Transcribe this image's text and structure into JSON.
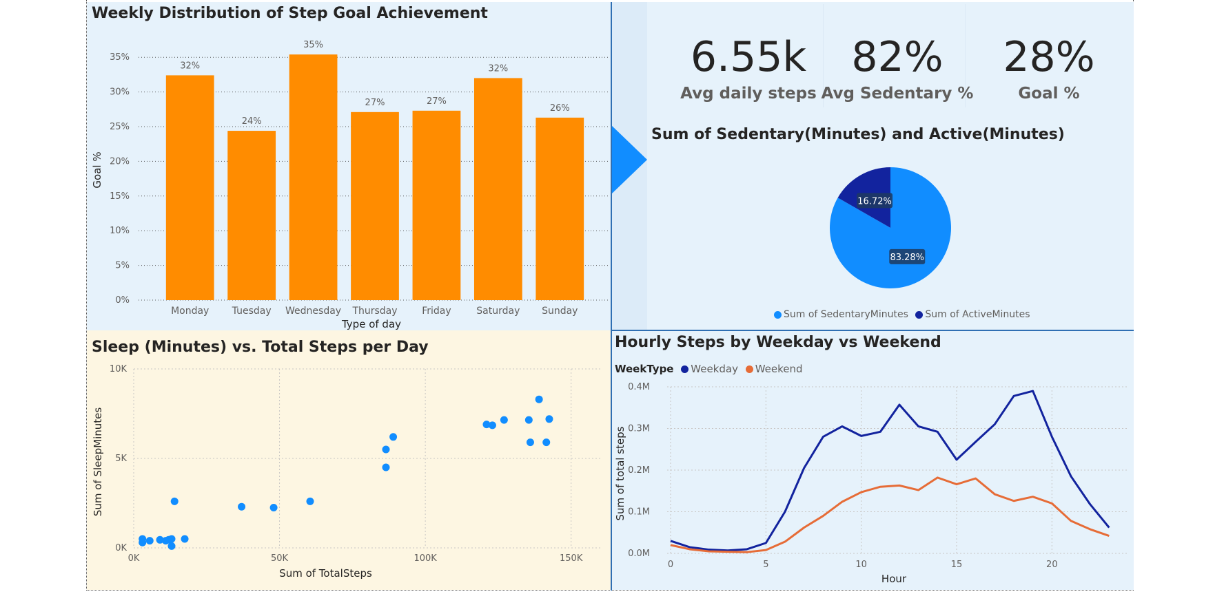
{
  "bar_chart": {
    "title": "Weekly Distribution of Step Goal Achievement",
    "bar_color": "#ff8c00"
  },
  "kpis": [
    {
      "value": "6.55k",
      "label": "Avg daily steps"
    },
    {
      "value": "82%",
      "label": "Avg Sedentary %"
    },
    {
      "value": "28%",
      "label": "Goal %"
    }
  ],
  "pie_chart": {
    "title": "Sum of Sedentary(Minutes) and Active(Minutes)",
    "legend": [
      {
        "label": "Sum of SedentaryMinutes",
        "color": "#118dff"
      },
      {
        "label": "Sum of ActiveMinutes",
        "color": "#12239e"
      }
    ]
  },
  "scatter_chart": {
    "title": "Sleep (Minutes) vs. Total Steps per Day",
    "point_color": "#118dff"
  },
  "line_chart": {
    "title": "Hourly Steps by Weekday vs Weekend",
    "legend_title": "WeekType",
    "legend": [
      {
        "label": "Weekday",
        "color": "#12239e"
      },
      {
        "label": "Weekend",
        "color": "#e66c37"
      }
    ]
  },
  "chart_data": [
    {
      "type": "bar",
      "title": "Weekly Distribution of Step Goal Achievement",
      "xlabel": "Type of day",
      "ylabel": "Goal %",
      "categories": [
        "Monday",
        "Tuesday",
        "Wednesday",
        "Thursday",
        "Friday",
        "Saturday",
        "Sunday"
      ],
      "values": [
        32.4,
        24.4,
        35.4,
        27.1,
        27.3,
        32.0,
        26.3
      ],
      "data_labels": [
        "32%",
        "24%",
        "35%",
        "27%",
        "27%",
        "32%",
        "26%"
      ],
      "ylim": [
        0,
        37.5
      ],
      "yticks": [
        0,
        5,
        10,
        15,
        20,
        25,
        30,
        35
      ],
      "ytick_labels": [
        "0%",
        "5%",
        "10%",
        "15%",
        "20%",
        "25%",
        "30%",
        "35%"
      ],
      "grid": true
    },
    {
      "type": "pie",
      "title": "Sum of Sedentary(Minutes) and Active(Minutes)",
      "categories": [
        "Sum of SedentaryMinutes",
        "Sum of ActiveMinutes"
      ],
      "values": [
        83.28,
        16.72
      ],
      "data_labels": [
        "83.28%",
        "16.72%"
      ],
      "colors": [
        "#118dff",
        "#12239e"
      ],
      "legend": "bottom"
    },
    {
      "type": "scatter",
      "title": "Sleep (Minutes) vs. Total Steps per Day",
      "xlabel": "Sum of TotalSteps",
      "ylabel": "Sum of SleepMinutes",
      "xlim": [
        0,
        160000
      ],
      "ylim": [
        0,
        10000
      ],
      "xticks": [
        0,
        50000,
        100000,
        150000
      ],
      "xtick_labels": [
        "0K",
        "50K",
        "100K",
        "150K"
      ],
      "yticks": [
        0,
        5000,
        10000
      ],
      "ytick_labels": [
        "0K",
        "5K",
        "10K"
      ],
      "points": [
        {
          "x": 3000,
          "y": 500
        },
        {
          "x": 3000,
          "y": 300
        },
        {
          "x": 5500,
          "y": 400
        },
        {
          "x": 9000,
          "y": 450
        },
        {
          "x": 11000,
          "y": 400
        },
        {
          "x": 12000,
          "y": 450
        },
        {
          "x": 13000,
          "y": 500
        },
        {
          "x": 13000,
          "y": 100
        },
        {
          "x": 14000,
          "y": 2600
        },
        {
          "x": 17500,
          "y": 500
        },
        {
          "x": 37000,
          "y": 2300
        },
        {
          "x": 48000,
          "y": 2250
        },
        {
          "x": 60500,
          "y": 2600
        },
        {
          "x": 86500,
          "y": 4500
        },
        {
          "x": 86500,
          "y": 5500
        },
        {
          "x": 89000,
          "y": 6200
        },
        {
          "x": 121000,
          "y": 6900
        },
        {
          "x": 123000,
          "y": 6850
        },
        {
          "x": 127000,
          "y": 7150
        },
        {
          "x": 135500,
          "y": 7150
        },
        {
          "x": 136000,
          "y": 5900
        },
        {
          "x": 139000,
          "y": 8300
        },
        {
          "x": 141500,
          "y": 5900
        },
        {
          "x": 142500,
          "y": 7200
        }
      ],
      "grid": true
    },
    {
      "type": "line",
      "title": "Hourly Steps by Weekday vs Weekend",
      "xlabel": "Hour",
      "ylabel": "Sum of total steps",
      "x": [
        0,
        1,
        2,
        3,
        4,
        5,
        6,
        7,
        8,
        9,
        10,
        11,
        12,
        13,
        14,
        15,
        16,
        17,
        18,
        19,
        20,
        21,
        22,
        23
      ],
      "xlim": [
        0,
        24
      ],
      "xticks": [
        0,
        5,
        10,
        15,
        20
      ],
      "ylim": [
        0,
        400000
      ],
      "yticks": [
        0,
        100000,
        200000,
        300000,
        400000
      ],
      "ytick_labels": [
        "0.0M",
        "0.1M",
        "0.2M",
        "0.3M",
        "0.4M"
      ],
      "legend": "top-left",
      "series": [
        {
          "name": "Weekday",
          "color": "#12239e",
          "values": [
            30000,
            15000,
            9000,
            7000,
            10000,
            25000,
            100000,
            205000,
            280000,
            305000,
            282000,
            292000,
            357000,
            305000,
            292000,
            225000,
            268000,
            310000,
            378000,
            390000,
            280000,
            185000,
            118000,
            62000
          ]
        },
        {
          "name": "Weekend",
          "color": "#e66c37",
          "values": [
            20000,
            10000,
            5000,
            4000,
            3000,
            8000,
            28000,
            62000,
            90000,
            124000,
            147000,
            160000,
            163000,
            152000,
            182000,
            166000,
            180000,
            142000,
            126000,
            136000,
            120000,
            78000,
            58000,
            42000
          ]
        }
      ],
      "grid": true
    }
  ]
}
